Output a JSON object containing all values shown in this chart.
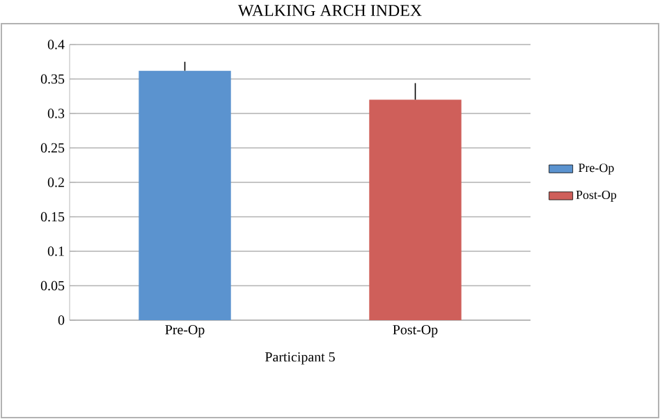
{
  "chart_data": {
    "type": "bar",
    "title": "WALKING ARCH INDEX",
    "xlabel": "Participant 5",
    "categories": [
      "Pre-Op",
      "Post-Op"
    ],
    "series": [
      {
        "name": "Pre-Op",
        "color": "#5b93cf",
        "values": [
          0.362,
          null
        ],
        "errors": [
          [
            0.362,
            0.375
          ],
          null
        ]
      },
      {
        "name": "Post-Op",
        "color": "#cf5f5a",
        "values": [
          null,
          0.32
        ],
        "errors": [
          null,
          [
            0.32,
            0.344
          ]
        ]
      }
    ],
    "ylim": [
      0,
      0.4
    ],
    "yticks": [
      0,
      0.05,
      0.1,
      0.15,
      0.2,
      0.25,
      0.3,
      0.35,
      0.4
    ],
    "grid": "y",
    "legend": "right"
  }
}
